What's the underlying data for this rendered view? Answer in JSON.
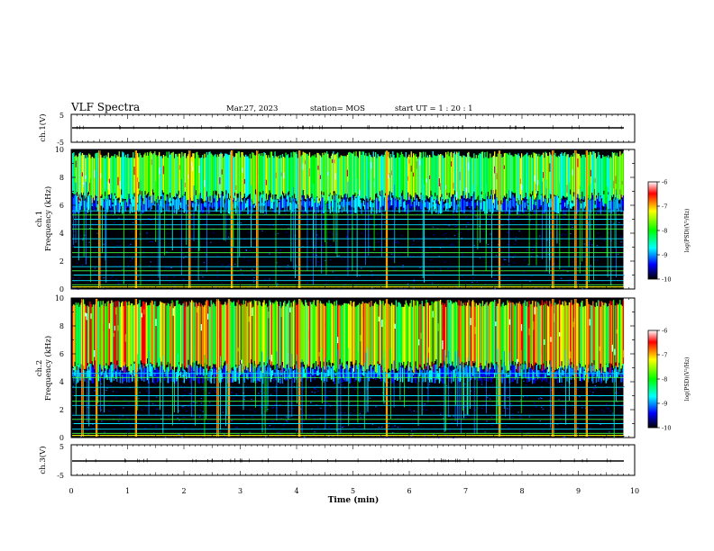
{
  "header": {
    "title": "VLF Spectra",
    "date": "Mar.27, 2023",
    "station": "station= MOS",
    "start": "start  UT =   1 : 20 : 1"
  },
  "chart_data": [
    {
      "type": "line",
      "panel": "waveform-top",
      "ylabel": "ch.1(V)",
      "ylim": [
        -5,
        5
      ],
      "y_ticks": [
        "5",
        "-5"
      ],
      "xlim": [
        0,
        10
      ],
      "level": 0
    },
    {
      "type": "heatmap",
      "panel": "spectrogram-ch1",
      "ylabel": "ch.1\nFrequency (kHz)",
      "ylim": [
        0,
        10
      ],
      "y_ticks": [
        "0",
        "2",
        "4",
        "6",
        "8",
        "10"
      ],
      "xlim": [
        0,
        10
      ],
      "data_extent_x": [
        0,
        9.8
      ],
      "lines_khz": [
        0.3,
        0.6,
        1.0,
        1.3,
        1.6,
        2.3,
        2.6,
        3.0,
        3.6,
        4.3,
        4.6,
        5.0,
        5.3,
        5.6
      ],
      "band_khz": [
        6.0,
        10.0
      ],
      "strong_bursts_min": [
        0.5,
        1.15,
        2.1,
        2.85,
        3.3,
        4.05,
        5.6,
        7.6,
        8.55,
        8.95,
        9.15
      ],
      "colorbar": {
        "label": "log(PSD)(V²/Hz)",
        "ticks": [
          "-6",
          "-7",
          "-8",
          "-9",
          "-10"
        ],
        "range": [
          -10,
          -6
        ]
      }
    },
    {
      "type": "heatmap",
      "panel": "spectrogram-ch2",
      "ylabel": "ch.2\nFrequency (kHz)",
      "ylim": [
        0,
        10
      ],
      "y_ticks": [
        "0",
        "2",
        "4",
        "6",
        "8",
        "10"
      ],
      "xlim": [
        0,
        10
      ],
      "data_extent_x": [
        0,
        9.8
      ],
      "lines_khz": [
        0.3,
        0.6,
        1.0,
        1.3,
        1.6,
        2.3,
        2.6,
        3.0,
        3.6,
        4.3,
        4.6
      ],
      "band_khz": [
        4.5,
        10.0
      ],
      "strong_bursts_min": [
        0.2,
        0.45,
        1.15,
        2.6,
        2.8,
        4.05,
        5.6,
        7.6,
        8.55,
        8.95,
        9.15
      ],
      "colorbar": {
        "label": "log(PSD)(V²/Hz)",
        "ticks": [
          "-6",
          "-7",
          "-8",
          "-9",
          "-10"
        ],
        "range": [
          -10,
          -6
        ]
      }
    },
    {
      "type": "line",
      "panel": "waveform-bottom",
      "ylabel": "ch.3(V)",
      "ylim": [
        -5,
        5
      ],
      "y_ticks": [
        "5",
        "-5"
      ],
      "xlim": [
        0,
        10
      ],
      "level": 0,
      "xlabel": "Time  (min)",
      "x_ticks": [
        "0",
        "1",
        "2",
        "3",
        "4",
        "5",
        "6",
        "7",
        "8",
        "9",
        "10"
      ]
    }
  ]
}
